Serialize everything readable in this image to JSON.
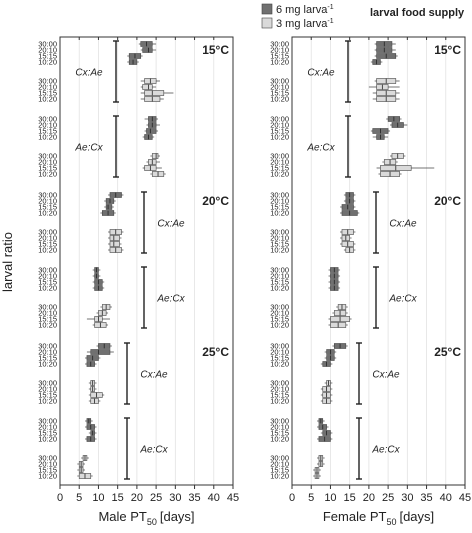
{
  "y_label": "larval ratio",
  "legend": {
    "title": "larval food supply",
    "series": [
      {
        "name": "6 mg larva",
        "sup": "-1",
        "color": "#707070"
      },
      {
        "name": "3 mg larva",
        "sup": "-1",
        "color": "#dadada"
      }
    ]
  },
  "chart_data": [
    {
      "type": "box",
      "xlabel": {
        "text": "Male PT",
        "sub": "50",
        "after": "[days]"
      },
      "xlim": [
        0,
        45
      ],
      "xticks": [
        0,
        5,
        10,
        15,
        20,
        25,
        30,
        35,
        40,
        45
      ],
      "temperatures": [
        "15°C",
        "20°C",
        "25°C"
      ],
      "groups": [
        "Cx:Ae",
        "Ae:Cx"
      ],
      "ratios": [
        "30:00",
        "20:10",
        "15:15",
        "10:20"
      ],
      "boxes": [
        [
          [
            [
              [
                20.5,
                21,
                22.5,
                24,
                25
              ],
              [
                21,
                21.5,
                23,
                24,
                25
              ],
              [
                17.5,
                18,
                19.5,
                21,
                21.5
              ],
              [
                17.5,
                18,
                19,
                20,
                20.5
              ]
            ],
            [
              [
                21,
                22,
                23.5,
                25,
                26
              ],
              [
                21,
                21.5,
                23,
                24,
                25
              ],
              [
                21,
                22,
                24,
                27,
                29.5
              ],
              [
                21,
                22,
                24,
                26,
                27
              ]
            ]
          ],
          [
            [
              [
                22,
                23,
                24,
                25,
                25.5
              ],
              [
                22.5,
                23,
                24,
                25,
                26
              ],
              [
                22,
                22.5,
                23.5,
                25,
                25.5
              ],
              [
                21.5,
                22,
                23,
                24,
                24.5
              ]
            ],
            [
              [
                23.5,
                24,
                25,
                25.5,
                26
              ],
              [
                22.5,
                23,
                24,
                25,
                26
              ],
              [
                21.5,
                22,
                23.5,
                25,
                26.5
              ],
              [
                23.5,
                24,
                25.5,
                27,
                27.5
              ]
            ]
          ]
        ],
        [
          [
            [
              [
                12.5,
                13,
                14.5,
                16,
                16.5
              ],
              [
                11.5,
                12,
                13,
                14,
                14.5
              ],
              [
                11.5,
                12,
                12.5,
                13.5,
                14
              ],
              [
                10.5,
                11,
                12.5,
                14,
                14.5
              ]
            ],
            [
              [
                12.5,
                13,
                14.5,
                16,
                16.5
              ],
              [
                12.5,
                13,
                14,
                15.5,
                16
              ],
              [
                12.5,
                13,
                14,
                15.5,
                16
              ],
              [
                12.5,
                13,
                14.5,
                16,
                16.5
              ]
            ]
          ],
          [
            [
              [
                8.5,
                9,
                9.5,
                10,
                10.5
              ],
              [
                8.5,
                9,
                9.5,
                10,
                10.5
              ],
              [
                8.5,
                9,
                10,
                11,
                11.5
              ],
              [
                8.5,
                9,
                10,
                11,
                11.5
              ]
            ],
            [
              [
                10.5,
                11,
                12,
                13,
                13.5
              ],
              [
                9.5,
                10,
                11,
                12,
                12.5
              ],
              [
                7,
                9,
                10,
                11,
                13
              ],
              [
                8.5,
                9,
                10.5,
                12,
                12.5
              ]
            ]
          ]
        ],
        [
          [
            [
              [
                9.5,
                10,
                11.5,
                13,
                13.5
              ],
              [
                7,
                8,
                10,
                13,
                14
              ],
              [
                6.5,
                7,
                8.5,
                10,
                10.5
              ],
              [
                6.5,
                7,
                8,
                9,
                9.5
              ]
            ],
            [
              [
                7.5,
                8,
                8.5,
                9,
                9.5
              ],
              [
                7.5,
                8,
                8.5,
                9,
                9.5
              ],
              [
                7.5,
                8,
                9.5,
                11,
                11.5
              ],
              [
                7.5,
                8,
                9,
                10,
                10.5
              ]
            ]
          ],
          [
            [
              [
                6.5,
                7,
                7.5,
                8,
                8.5
              ],
              [
                6.5,
                7,
                8,
                9,
                9.5
              ],
              [
                7.5,
                8,
                8.5,
                9,
                9.5
              ],
              [
                6.5,
                7,
                8,
                9,
                9.5
              ]
            ],
            [
              [
                5.5,
                6,
                6.5,
                7,
                7.5
              ],
              [
                4.5,
                5,
                5.5,
                6,
                6.5
              ],
              [
                4.5,
                5,
                5.5,
                6,
                6.5
              ],
              [
                4.5,
                5,
                6.5,
                8,
                8.5
              ]
            ]
          ]
        ]
      ]
    },
    {
      "type": "box",
      "xlabel": {
        "text": "Female PT",
        "sub": "50",
        "after": "[days]"
      },
      "xlim": [
        0,
        45
      ],
      "xticks": [
        0,
        5,
        10,
        15,
        20,
        25,
        30,
        35,
        40,
        45
      ],
      "temperatures": [
        "15°C",
        "20°C",
        "25°C"
      ],
      "groups": [
        "Cx:Ae",
        "Ae:Cx"
      ],
      "ratios": [
        "30:00",
        "20:10",
        "15:15",
        "10:20"
      ],
      "boxes": [
        [
          [
            [
              [
                21.5,
                22,
                24,
                26,
                27
              ],
              [
                21.5,
                22,
                24,
                26,
                27
              ],
              [
                21.5,
                22,
                24.5,
                27,
                27.5
              ],
              [
                20.5,
                21,
                22,
                23,
                23.5
              ]
            ],
            [
              [
                21.5,
                22,
                24.5,
                27,
                28
              ],
              [
                20,
                22,
                23.5,
                25,
                28
              ],
              [
                21,
                22,
                24.5,
                27,
                28
              ],
              [
                21,
                22,
                24.5,
                27,
                28
              ]
            ]
          ],
          [
            [
              [
                24.5,
                25,
                26.5,
                28,
                28.5
              ],
              [
                25.5,
                26,
                27.5,
                29,
                30
              ],
              [
                20.5,
                21,
                23,
                25,
                25.5
              ],
              [
                21,
                22,
                23,
                24,
                25
              ]
            ],
            [
              [
                25.5,
                26,
                27.5,
                29,
                29.5
              ],
              [
                23.5,
                24,
                25.5,
                27,
                27.5
              ],
              [
                22,
                23,
                27,
                31,
                37
              ],
              [
                22.5,
                23,
                25.5,
                28,
                28.5
              ]
            ]
          ]
        ],
        [
          [
            [
              [
                13.5,
                14,
                15,
                16,
                16.5
              ],
              [
                13.5,
                14,
                15,
                16,
                16.5
              ],
              [
                12.5,
                13,
                14.5,
                16,
                16.5
              ],
              [
                12.5,
                13,
                15,
                17,
                17.5
              ]
            ],
            [
              [
                12.5,
                13,
                14.5,
                16,
                16.5
              ],
              [
                12.5,
                13,
                14,
                15,
                15.5
              ],
              [
                12.5,
                13,
                14.5,
                16,
                16.5
              ],
              [
                13.5,
                14,
                15,
                16,
                16.5
              ]
            ]
          ],
          [
            [
              [
                9.5,
                10,
                11,
                12,
                12.5
              ],
              [
                9.5,
                10,
                11,
                12,
                12.5
              ],
              [
                9.5,
                10,
                11,
                12,
                12.5
              ],
              [
                9.5,
                10,
                11,
                12,
                12.5
              ]
            ],
            [
              [
                11.5,
                12,
                13,
                14,
                14.5
              ],
              [
                10.5,
                11,
                12.5,
                14,
                14.5
              ],
              [
                9.5,
                10,
                12.5,
                15,
                15.5
              ],
              [
                9.5,
                10,
                12,
                14,
                14.5
              ]
            ]
          ]
        ],
        [
          [
            [
              [
                10.5,
                11,
                12.5,
                14,
                14.5
              ],
              [
                8.5,
                9,
                10,
                11,
                11.5
              ],
              [
                8.5,
                9,
                10,
                11,
                11.5
              ],
              [
                7.5,
                8,
                9,
                10,
                10.5
              ]
            ],
            [
              [
                8.5,
                9,
                9.5,
                10,
                10.5
              ],
              [
                7.5,
                8,
                9,
                10,
                10.5
              ],
              [
                7.5,
                8,
                9,
                10,
                10.5
              ],
              [
                7.5,
                8,
                9,
                10,
                10.5
              ]
            ]
          ],
          [
            [
              [
                6.5,
                7,
                7.5,
                8,
                8.5
              ],
              [
                6.5,
                7,
                8,
                9,
                9.5
              ],
              [
                7.5,
                8,
                9,
                10,
                10.5
              ],
              [
                6.5,
                7,
                8.5,
                10,
                10.5
              ]
            ],
            [
              [
                6.5,
                7,
                7.5,
                8,
                8.5
              ],
              [
                6.5,
                7,
                7.5,
                8,
                8.5
              ],
              [
                5.5,
                6,
                6.5,
                7,
                7.5
              ],
              [
                5.5,
                6,
                6.5,
                7,
                7.5
              ]
            ]
          ]
        ]
      ]
    }
  ]
}
